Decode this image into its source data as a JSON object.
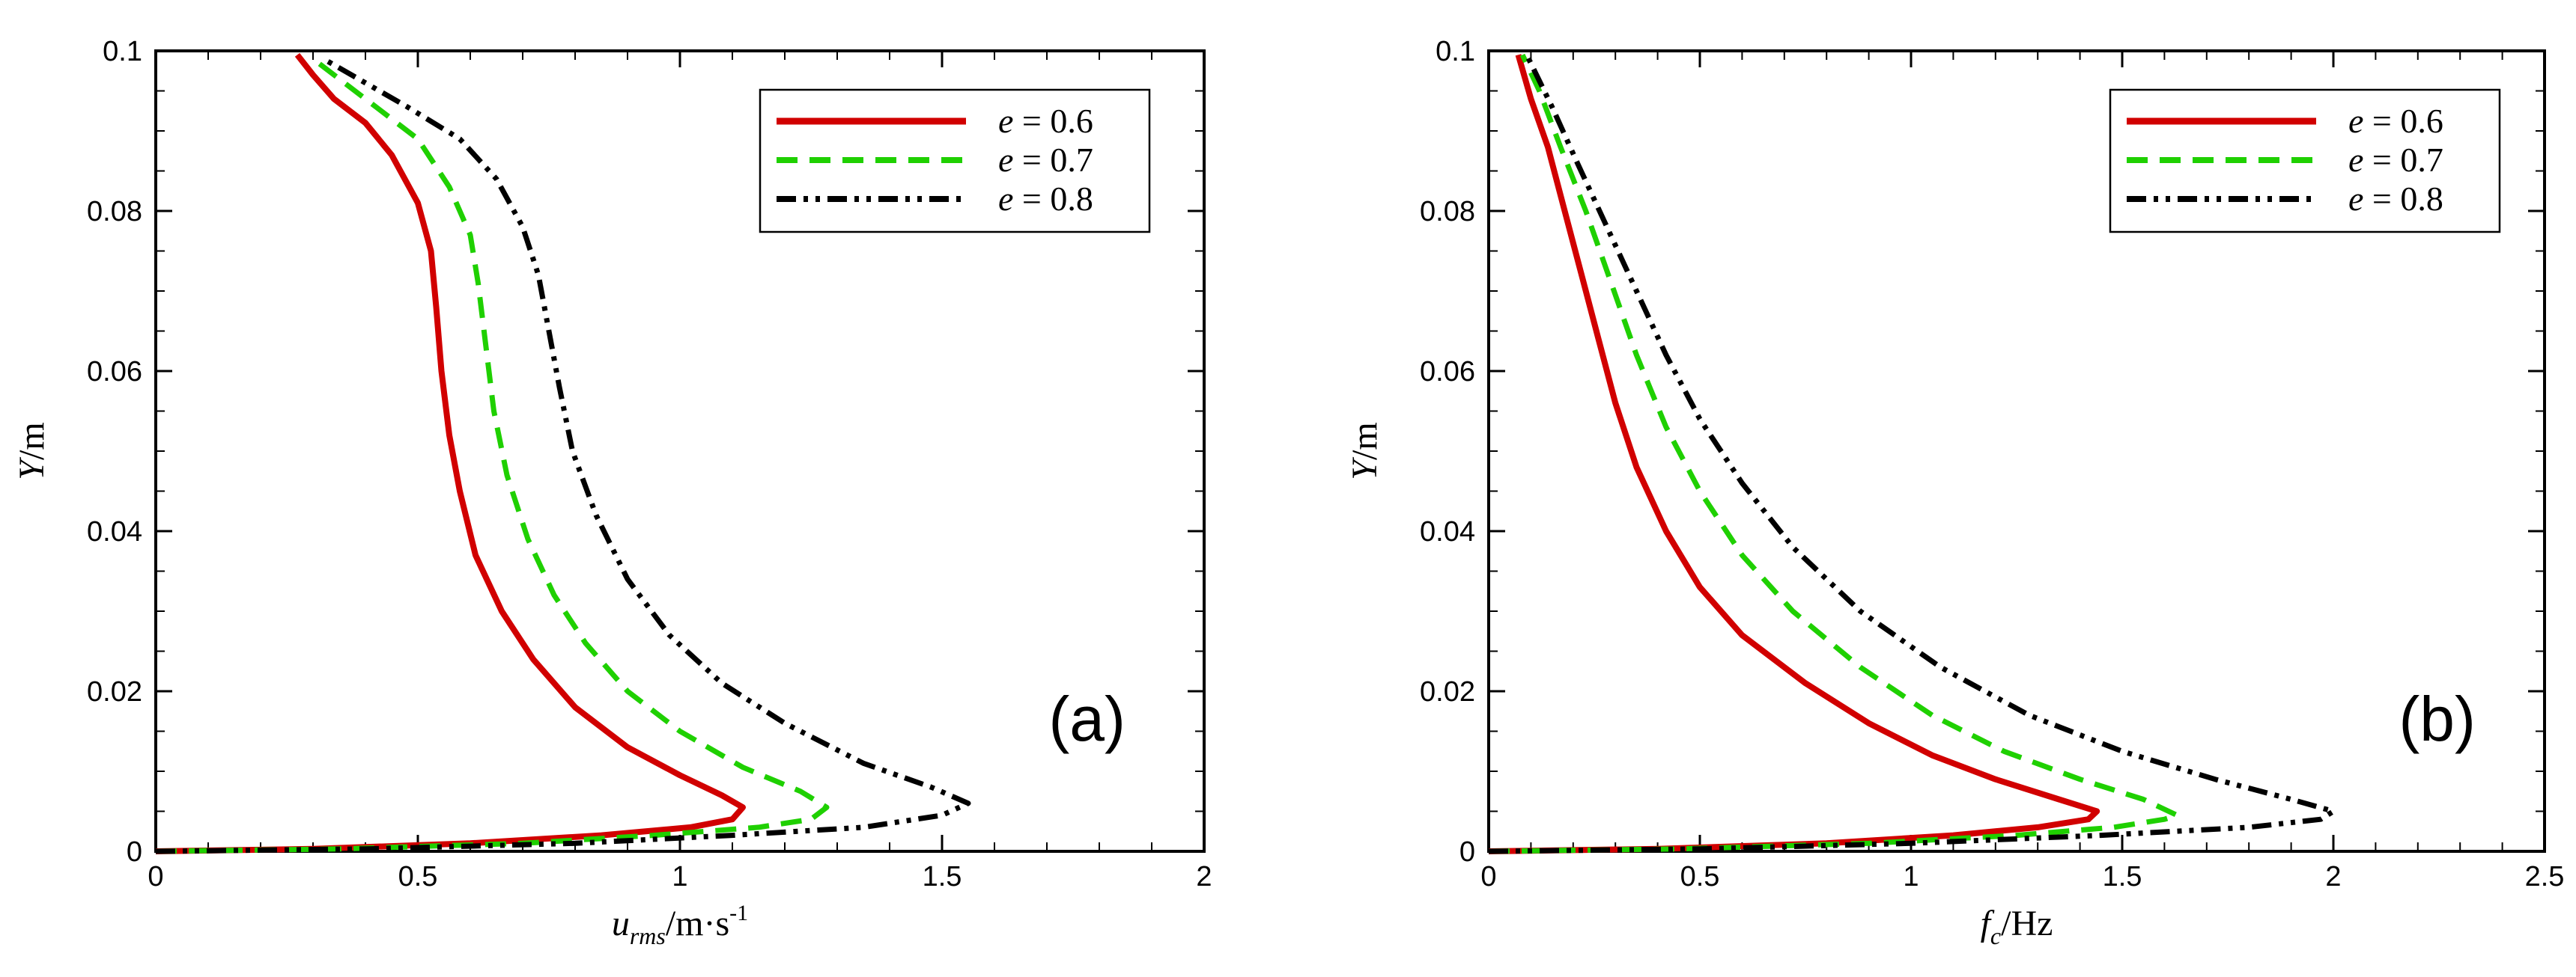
{
  "chart_data": [
    {
      "type": "line",
      "panel_label": "(a)",
      "xlabel": {
        "main": "u",
        "sub": "rms",
        "rest": "/m·s",
        "sup": "-1"
      },
      "ylabel": {
        "main": "Y",
        "rest": "/m"
      },
      "xlim": [
        0,
        2
      ],
      "ylim": [
        0,
        0.1
      ],
      "xticks": [
        0,
        0.5,
        1,
        1.5,
        2
      ],
      "xtick_labels": [
        "0",
        "0.5",
        "1",
        "1.5",
        "2"
      ],
      "yticks": [
        0,
        0.02,
        0.04,
        0.06,
        0.08,
        0.1
      ],
      "ytick_labels": [
        "0",
        "0.02",
        "0.04",
        "0.06",
        "0.08",
        "0.1"
      ],
      "legend_position": "top-right",
      "series": [
        {
          "name": "e = 0.6",
          "e": "e",
          "label": " = 0.6",
          "color": "#d10000",
          "dash": "solid",
          "points": [
            [
              0,
              0
            ],
            [
              0.3,
              0.0003
            ],
            [
              0.6,
              0.001
            ],
            [
              0.85,
              0.002
            ],
            [
              1.02,
              0.003
            ],
            [
              1.1,
              0.004
            ],
            [
              1.12,
              0.0055
            ],
            [
              1.08,
              0.007
            ],
            [
              1.0,
              0.0095
            ],
            [
              0.9,
              0.013
            ],
            [
              0.8,
              0.018
            ],
            [
              0.72,
              0.024
            ],
            [
              0.66,
              0.03
            ],
            [
              0.61,
              0.037
            ],
            [
              0.58,
              0.045
            ],
            [
              0.56,
              0.052
            ],
            [
              0.545,
              0.06
            ],
            [
              0.535,
              0.068
            ],
            [
              0.525,
              0.075
            ],
            [
              0.5,
              0.081
            ],
            [
              0.45,
              0.087
            ],
            [
              0.4,
              0.091
            ],
            [
              0.34,
              0.094
            ],
            [
              0.3,
              0.097
            ],
            [
              0.27,
              0.0995
            ]
          ]
        },
        {
          "name": "e = 0.7",
          "e": "e",
          "label": " = 0.7",
          "color": "#1fd000",
          "dash": "dashed",
          "points": [
            [
              0,
              0
            ],
            [
              0.35,
              0.0003
            ],
            [
              0.7,
              0.001
            ],
            [
              0.95,
              0.002
            ],
            [
              1.15,
              0.003
            ],
            [
              1.25,
              0.004
            ],
            [
              1.28,
              0.0055
            ],
            [
              1.23,
              0.0075
            ],
            [
              1.12,
              0.0105
            ],
            [
              1.0,
              0.015
            ],
            [
              0.9,
              0.02
            ],
            [
              0.82,
              0.026
            ],
            [
              0.76,
              0.032
            ],
            [
              0.71,
              0.039
            ],
            [
              0.67,
              0.047
            ],
            [
              0.645,
              0.055
            ],
            [
              0.63,
              0.063
            ],
            [
              0.615,
              0.071
            ],
            [
              0.6,
              0.077
            ],
            [
              0.56,
              0.083
            ],
            [
              0.5,
              0.089
            ],
            [
              0.42,
              0.093
            ],
            [
              0.36,
              0.096
            ],
            [
              0.3,
              0.099
            ]
          ]
        },
        {
          "name": "e = 0.8",
          "e": "e",
          "label": " = 0.8",
          "color": "#000000",
          "dash": "dashdotdot",
          "points": [
            [
              0,
              0
            ],
            [
              0.4,
              0.0003
            ],
            [
              0.8,
              0.001
            ],
            [
              1.1,
              0.002
            ],
            [
              1.35,
              0.003
            ],
            [
              1.5,
              0.0045
            ],
            [
              1.55,
              0.006
            ],
            [
              1.48,
              0.008
            ],
            [
              1.35,
              0.011
            ],
            [
              1.2,
              0.016
            ],
            [
              1.08,
              0.021
            ],
            [
              0.98,
              0.027
            ],
            [
              0.9,
              0.034
            ],
            [
              0.84,
              0.042
            ],
            [
              0.795,
              0.05
            ],
            [
              0.77,
              0.058
            ],
            [
              0.75,
              0.065
            ],
            [
              0.73,
              0.072
            ],
            [
              0.7,
              0.078
            ],
            [
              0.65,
              0.084
            ],
            [
              0.58,
              0.089
            ],
            [
              0.48,
              0.093
            ],
            [
              0.4,
              0.096
            ],
            [
              0.32,
              0.099
            ]
          ]
        }
      ]
    },
    {
      "type": "line",
      "panel_label": "(b)",
      "xlabel": {
        "main": "f",
        "sub": "c",
        "rest": "/Hz",
        "sup": ""
      },
      "ylabel": {
        "main": "Y",
        "rest": "/m"
      },
      "xlim": [
        0,
        2.5
      ],
      "ylim": [
        0,
        0.1
      ],
      "xticks": [
        0,
        0.5,
        1,
        1.5,
        2,
        2.5
      ],
      "xtick_labels": [
        "0",
        "0.5",
        "1",
        "1.5",
        "2",
        "2.5"
      ],
      "yticks": [
        0,
        0.02,
        0.04,
        0.06,
        0.08,
        0.1
      ],
      "ytick_labels": [
        "0",
        "0.02",
        "0.04",
        "0.06",
        "0.08",
        "0.1"
      ],
      "legend_position": "top-right",
      "series": [
        {
          "name": "e = 0.6",
          "e": "e",
          "label": " = 0.6",
          "color": "#d10000",
          "dash": "solid",
          "points": [
            [
              0,
              0
            ],
            [
              0.4,
              0.0003
            ],
            [
              0.8,
              0.001
            ],
            [
              1.1,
              0.002
            ],
            [
              1.3,
              0.003
            ],
            [
              1.42,
              0.004
            ],
            [
              1.44,
              0.005
            ],
            [
              1.35,
              0.0065
            ],
            [
              1.2,
              0.009
            ],
            [
              1.05,
              0.012
            ],
            [
              0.9,
              0.016
            ],
            [
              0.75,
              0.021
            ],
            [
              0.6,
              0.027
            ],
            [
              0.5,
              0.033
            ],
            [
              0.42,
              0.04
            ],
            [
              0.35,
              0.048
            ],
            [
              0.3,
              0.056
            ],
            [
              0.26,
              0.064
            ],
            [
              0.22,
              0.072
            ],
            [
              0.18,
              0.08
            ],
            [
              0.14,
              0.088
            ],
            [
              0.1,
              0.094
            ],
            [
              0.07,
              0.0995
            ]
          ]
        },
        {
          "name": "e = 0.7",
          "e": "e",
          "label": " = 0.7",
          "color": "#1fd000",
          "dash": "dashed",
          "points": [
            [
              0,
              0
            ],
            [
              0.45,
              0.0003
            ],
            [
              0.9,
              0.001
            ],
            [
              1.25,
              0.002
            ],
            [
              1.48,
              0.003
            ],
            [
              1.6,
              0.004
            ],
            [
              1.63,
              0.0045
            ],
            [
              1.55,
              0.0065
            ],
            [
              1.4,
              0.009
            ],
            [
              1.22,
              0.0125
            ],
            [
              1.05,
              0.017
            ],
            [
              0.88,
              0.023
            ],
            [
              0.72,
              0.03
            ],
            [
              0.6,
              0.037
            ],
            [
              0.5,
              0.045
            ],
            [
              0.42,
              0.053
            ],
            [
              0.35,
              0.062
            ],
            [
              0.29,
              0.071
            ],
            [
              0.23,
              0.08
            ],
            [
              0.17,
              0.088
            ],
            [
              0.12,
              0.095
            ],
            [
              0.08,
              0.0995
            ]
          ]
        },
        {
          "name": "e = 0.8",
          "e": "e",
          "label": " = 0.8",
          "color": "#000000",
          "dash": "dashdotdot",
          "points": [
            [
              0,
              0
            ],
            [
              0.5,
              0.0003
            ],
            [
              1.0,
              0.001
            ],
            [
              1.45,
              0.002
            ],
            [
              1.8,
              0.003
            ],
            [
              1.97,
              0.004
            ],
            [
              2.0,
              0.005
            ],
            [
              1.9,
              0.0065
            ],
            [
              1.72,
              0.009
            ],
            [
              1.5,
              0.0125
            ],
            [
              1.28,
              0.017
            ],
            [
              1.07,
              0.023
            ],
            [
              0.88,
              0.03
            ],
            [
              0.72,
              0.038
            ],
            [
              0.6,
              0.046
            ],
            [
              0.5,
              0.054
            ],
            [
              0.42,
              0.062
            ],
            [
              0.35,
              0.07
            ],
            [
              0.28,
              0.078
            ],
            [
              0.21,
              0.086
            ],
            [
              0.15,
              0.093
            ],
            [
              0.09,
              0.0995
            ]
          ]
        }
      ]
    }
  ]
}
